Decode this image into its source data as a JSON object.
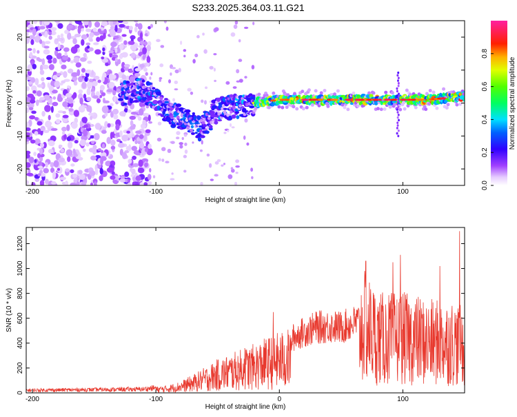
{
  "title": "S233.2025.364.03.11.G21",
  "colors": {
    "snr_line": "#e8392e",
    "axis": "#000000"
  },
  "chart_data": [
    {
      "type": "heatmap",
      "xlabel": "Height of straight line (km)",
      "ylabel": "Frequency (Hz)",
      "xlim": [
        -205,
        150
      ],
      "ylim": [
        -25,
        25
      ],
      "x_ticks": [
        -200,
        -100,
        0,
        100
      ],
      "y_ticks": [
        -20,
        -10,
        0,
        10,
        20
      ],
      "colorbar": {
        "label": "Normalized spectral amplitude",
        "range": [
          0,
          1
        ],
        "ticks": [
          0,
          0.2,
          0.4,
          0.6,
          0.8
        ],
        "tick_labels": [
          "0.0",
          "0.2",
          "0.4",
          "0.6",
          "0.8"
        ]
      },
      "description_values": {
        "noise_region_x": [
          -205,
          -105
        ],
        "signal_center_freq_hz": [
          [
            -125,
            3
          ],
          [
            -110,
            4
          ],
          [
            -100,
            1
          ],
          [
            -90,
            -3
          ],
          [
            -75,
            -5
          ],
          [
            -65,
            -8
          ],
          [
            -50,
            -2
          ],
          [
            -35,
            -1
          ],
          [
            -20,
            0
          ],
          [
            0,
            1
          ],
          [
            20,
            1
          ],
          [
            40,
            1
          ],
          [
            60,
            1
          ],
          [
            80,
            1
          ],
          [
            100,
            1
          ],
          [
            120,
            1
          ],
          [
            150,
            2
          ]
        ]
      }
    },
    {
      "type": "line",
      "xlabel": "Height of straight line (km)",
      "ylabel": "SNR (10 * v/v)",
      "xlim": [
        -205,
        150
      ],
      "ylim": [
        0,
        1330
      ],
      "x_ticks": [
        -200,
        -100,
        0,
        100
      ],
      "y_ticks": [
        0,
        200,
        400,
        600,
        800,
        1000,
        1200
      ],
      "series": [
        {
          "name": "SNR",
          "envelope_x": [
            -205,
            -150,
            -110,
            -90,
            -80,
            -70,
            -60,
            -50,
            -40,
            -30,
            -20,
            -10,
            0,
            10,
            20,
            30,
            40,
            50,
            60,
            70,
            80,
            90,
            100,
            110,
            120,
            130,
            140,
            150
          ],
          "envelope_y": [
            25,
            30,
            35,
            60,
            90,
            140,
            200,
            260,
            300,
            340,
            380,
            430,
            470,
            500,
            560,
            600,
            610,
            600,
            640,
            680,
            560,
            560,
            560,
            550,
            520,
            520,
            520,
            470
          ],
          "peaks": [
            [
              -28,
              360
            ],
            [
              -5,
              650
            ],
            [
              30,
              650
            ],
            [
              70,
              1060
            ],
            [
              92,
              1050
            ],
            [
              98,
              1110
            ],
            [
              130,
              1020
            ],
            [
              146,
              1300
            ]
          ]
        }
      ]
    }
  ]
}
